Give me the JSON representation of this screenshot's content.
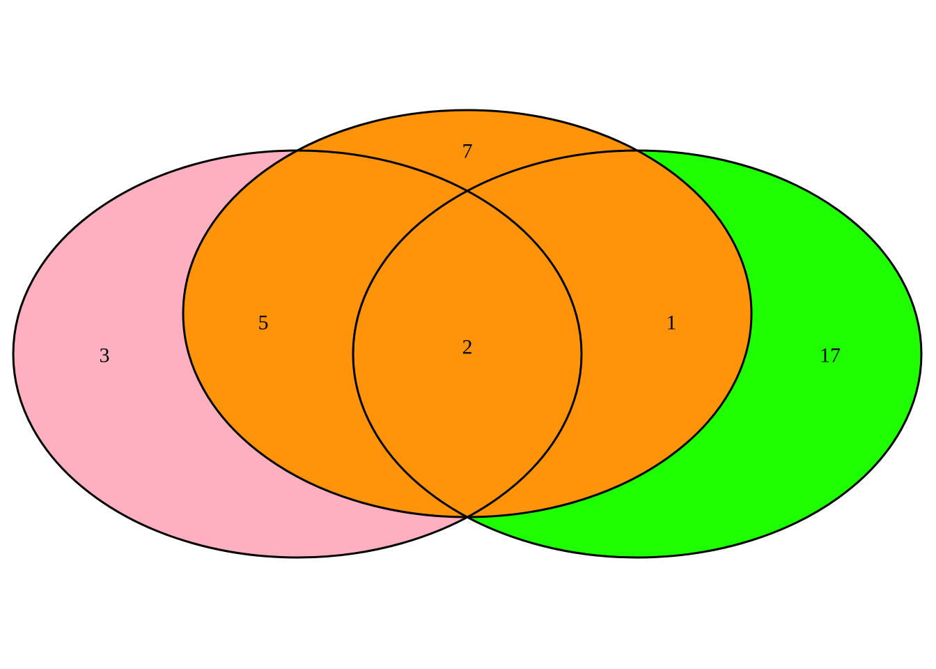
{
  "diagram": {
    "type": "venn",
    "colors": {
      "left_set": "#FFB0C0",
      "middle_set": "#FF940A",
      "right_set": "#1EFF00",
      "outline": "#000000",
      "background": "#FFFFFF"
    },
    "regions": {
      "left_only": "3",
      "left_middle": "5",
      "middle_only": "7",
      "all_three": "2",
      "middle_right": "1",
      "right_only": "17"
    }
  }
}
